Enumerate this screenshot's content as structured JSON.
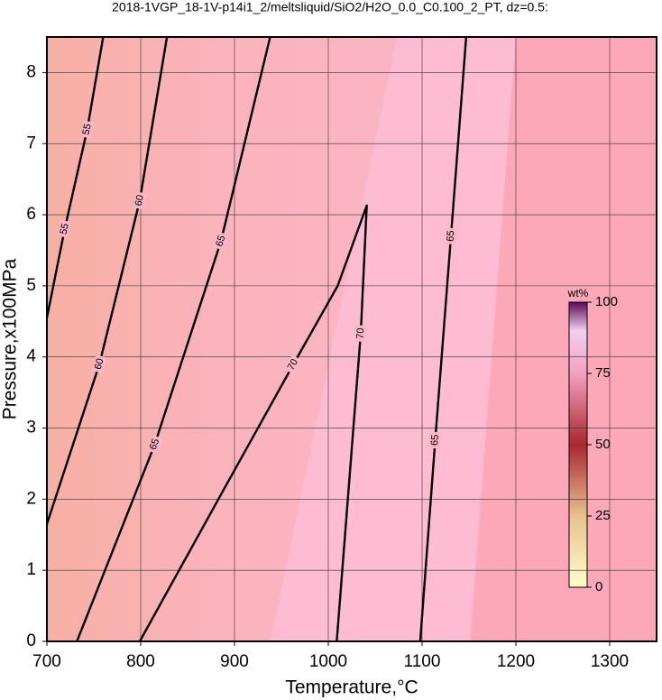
{
  "chart_data": {
    "type": "contour",
    "title": "2018-1VGP_18-1V-p14i1_2/meltsliquid/SiO2/H2O_0.0_C0.100_2_PT, dz=0.5:",
    "x_label": "Temperature,°C",
    "y_label": "Pressure,x100MPa",
    "xlim": [
      700,
      1350
    ],
    "ylim": [
      0,
      8.5
    ],
    "xticks": [
      700,
      800,
      900,
      1000,
      1100,
      1200,
      1300
    ],
    "yticks": [
      0,
      1,
      2,
      3,
      4,
      5,
      6,
      7,
      8
    ],
    "grid": true,
    "line_color": "#000000",
    "contours": [
      {
        "level": 55,
        "x": [
          700,
          719,
          743,
          760
        ],
        "y": [
          4.55,
          5.8,
          7.2,
          8.5
        ]
      },
      {
        "level": 60,
        "x": [
          700,
          756,
          799,
          828
        ],
        "y": [
          1.65,
          3.9,
          6.2,
          8.5
        ]
      },
      {
        "level": 65,
        "x": [
          732,
          815,
          885.6,
          938
        ],
        "y": [
          0,
          2.77,
          5.63,
          8.5
        ]
      },
      {
        "level": 70,
        "x": [
          799,
          890,
          962.5,
          1010,
          1041,
          1034.6,
          1009
        ],
        "y": [
          0,
          2.17,
          3.89,
          5.0,
          6.13,
          4.33,
          0
        ]
      },
      {
        "level": 65,
        "x": [
          1098,
          1114,
          1130.8,
          1147
        ],
        "y": [
          0,
          2.83,
          5.7,
          8.5
        ]
      }
    ],
    "colorbar": {
      "label": "wt%",
      "lim": [
        0,
        100
      ],
      "ticks": [
        0,
        25,
        50,
        75,
        100
      ]
    }
  }
}
